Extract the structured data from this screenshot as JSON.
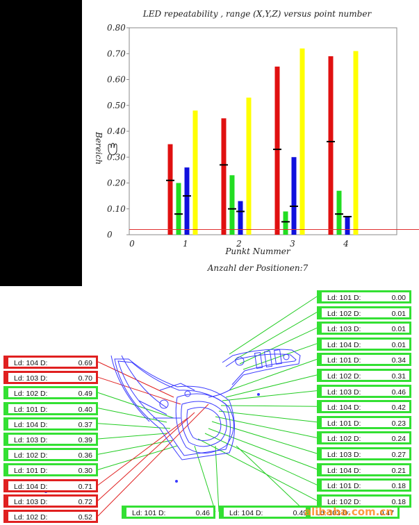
{
  "chart_data": {
    "type": "bar",
    "title": "LED repeatability , range (X,Y,Z) versus point number",
    "xlabel": "Punkt Nummer",
    "ylabel": "Bereich",
    "footnote": "Anzahl der Positionen:7",
    "categories": [
      "1",
      "2",
      "3",
      "4"
    ],
    "x_ticks": [
      "0",
      "1",
      "2",
      "3",
      "4"
    ],
    "ylim": [
      0,
      0.8
    ],
    "y_ticks": [
      "0",
      "0.10",
      "0.20",
      "0.30",
      "0.40",
      "0.50",
      "0.60",
      "0.70",
      "0.80"
    ],
    "series": [
      {
        "color": "#e01010",
        "values": [
          0.35,
          0.45,
          0.65,
          0.69
        ],
        "markers": [
          0.21,
          0.27,
          0.33,
          0.36
        ]
      },
      {
        "color": "#22dd22",
        "values": [
          0.2,
          0.23,
          0.09,
          0.17
        ],
        "markers": [
          0.08,
          0.1,
          0.05,
          0.08
        ]
      },
      {
        "color": "#1010dd",
        "values": [
          0.26,
          0.13,
          0.3,
          0.07
        ],
        "markers": [
          0.15,
          0.09,
          0.11,
          0.07
        ]
      },
      {
        "color": "#ffff00",
        "values": [
          0.48,
          0.53,
          0.72,
          0.71
        ],
        "markers": []
      }
    ],
    "reference_line": {
      "value": 0.02,
      "color": "#e03030"
    }
  },
  "callouts_right": [
    {
      "label": "Ld: 101  D:",
      "value": "0.00"
    },
    {
      "label": "Ld: 102  D:",
      "value": "0.01"
    },
    {
      "label": "Ld: 103  D:",
      "value": "0.01"
    },
    {
      "label": "Ld: 104  D:",
      "value": "0.01"
    },
    {
      "label": "Ld: 101  D:",
      "value": "0.34"
    },
    {
      "label": "Ld: 102  D:",
      "value": "0.31"
    },
    {
      "label": "Ld: 103  D:",
      "value": "0.46"
    },
    {
      "label": "Ld: 104  D:",
      "value": "0.42"
    },
    {
      "label": "Ld: 101  D:",
      "value": "0.23"
    },
    {
      "label": "Ld: 102  D:",
      "value": "0.24"
    },
    {
      "label": "Ld: 103  D:",
      "value": "0.27"
    },
    {
      "label": "Ld: 104  D:",
      "value": "0.21"
    },
    {
      "label": "Ld: 101  D:",
      "value": "0.18"
    },
    {
      "label": "Ld: 102  D:",
      "value": "0.18"
    }
  ],
  "callouts_left": [
    {
      "label": "Ld: 104  D:",
      "value": "0.69",
      "color": "red"
    },
    {
      "label": "Ld: 103  D:",
      "value": "0.70",
      "color": "red"
    },
    {
      "label": "Ld: 102  D:",
      "value": "0.49",
      "color": "green"
    },
    {
      "label": "Ld: 101  D:",
      "value": "0.40",
      "color": "green"
    },
    {
      "label": "Ld: 104  D:",
      "value": "0.37",
      "color": "green"
    },
    {
      "label": "Ld: 103  D:",
      "value": "0.39",
      "color": "green"
    },
    {
      "label": "Ld: 102  D:",
      "value": "0.36",
      "color": "green"
    },
    {
      "label": "Ld: 101  D:",
      "value": "0.30",
      "color": "green"
    },
    {
      "label": "Ld: 104  D:",
      "value": "0.71",
      "color": "red"
    },
    {
      "label": "Ld: 103  D:",
      "value": "0.72",
      "color": "red"
    },
    {
      "label": "Ld: 102  D:",
      "value": "0.52",
      "color": "red"
    }
  ],
  "callouts_bottom": [
    {
      "label": "Ld: 101  D:",
      "value": "0.46"
    },
    {
      "label": "Ld: 104  D:",
      "value": "0.49"
    },
    {
      "label": "Ld: 103  D:",
      "value": "0.47"
    }
  ],
  "watermark": "alibaba.com.cn"
}
